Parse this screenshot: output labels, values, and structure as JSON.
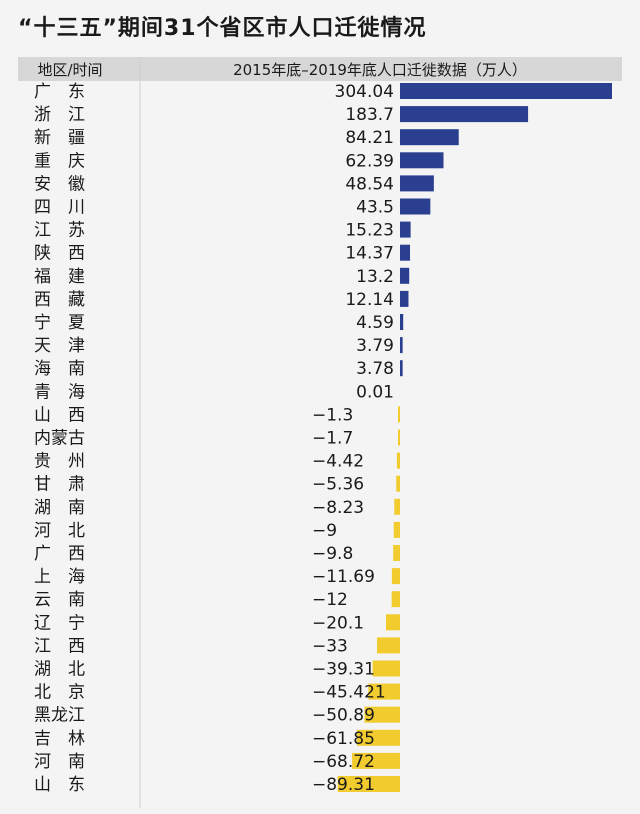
{
  "title": "“十三五”期间31个省区市人口迁徙情况",
  "header": {
    "region_label": "地区/时间",
    "value_label": "2015年底–2019年底人口迁徙数据（万人）"
  },
  "colors": {
    "positive": "#2a3f8f",
    "negative": "#f2cc2f",
    "header_bg": "#d7d7d7",
    "text": "#1a1a1a"
  },
  "chart_data": {
    "type": "bar",
    "orientation": "horizontal",
    "categories": [
      "广　东",
      "浙　江",
      "新　疆",
      "重　庆",
      "安　徽",
      "四　川",
      "江　苏",
      "陕　西",
      "福　建",
      "西　藏",
      "宁　夏",
      "天　津",
      "海　南",
      "青　海",
      "山　西",
      "内蒙古",
      "贵　州",
      "甘　肃",
      "湖　南",
      "河　北",
      "广　西",
      "上　海",
      "云　南",
      "辽　宁",
      "江　西",
      "湖　北",
      "北　京",
      "黑龙江",
      "吉　林",
      "河　南",
      "山　东"
    ],
    "value_labels": [
      "304.04",
      "183.7",
      "84.21",
      "62.39",
      "48.54",
      "43.5",
      "15.23",
      "14.37",
      "13.2",
      "12.14",
      "4.59",
      "3.79",
      "3.78",
      "0.01",
      "−1.3",
      "−1.7",
      "−4.42",
      "−5.36",
      "−8.23",
      "−9",
      "−9.8",
      "−11.69",
      "−12",
      "−20.1",
      "−33",
      "−39.31",
      "−45.421",
      "−50.89",
      "−61.85",
      "−68.72",
      "−89.31"
    ],
    "values": [
      304.04,
      183.7,
      84.21,
      62.39,
      48.54,
      43.5,
      15.23,
      14.37,
      13.2,
      12.14,
      4.59,
      3.79,
      3.78,
      0.01,
      -1.3,
      -1.7,
      -4.42,
      -5.36,
      -8.23,
      -9,
      -9.8,
      -11.69,
      -12,
      -20.1,
      -33,
      -39.31,
      -45.421,
      -50.89,
      -61.85,
      -68.72,
      -89.31
    ],
    "xlim": [
      -89.31,
      304.04
    ]
  }
}
